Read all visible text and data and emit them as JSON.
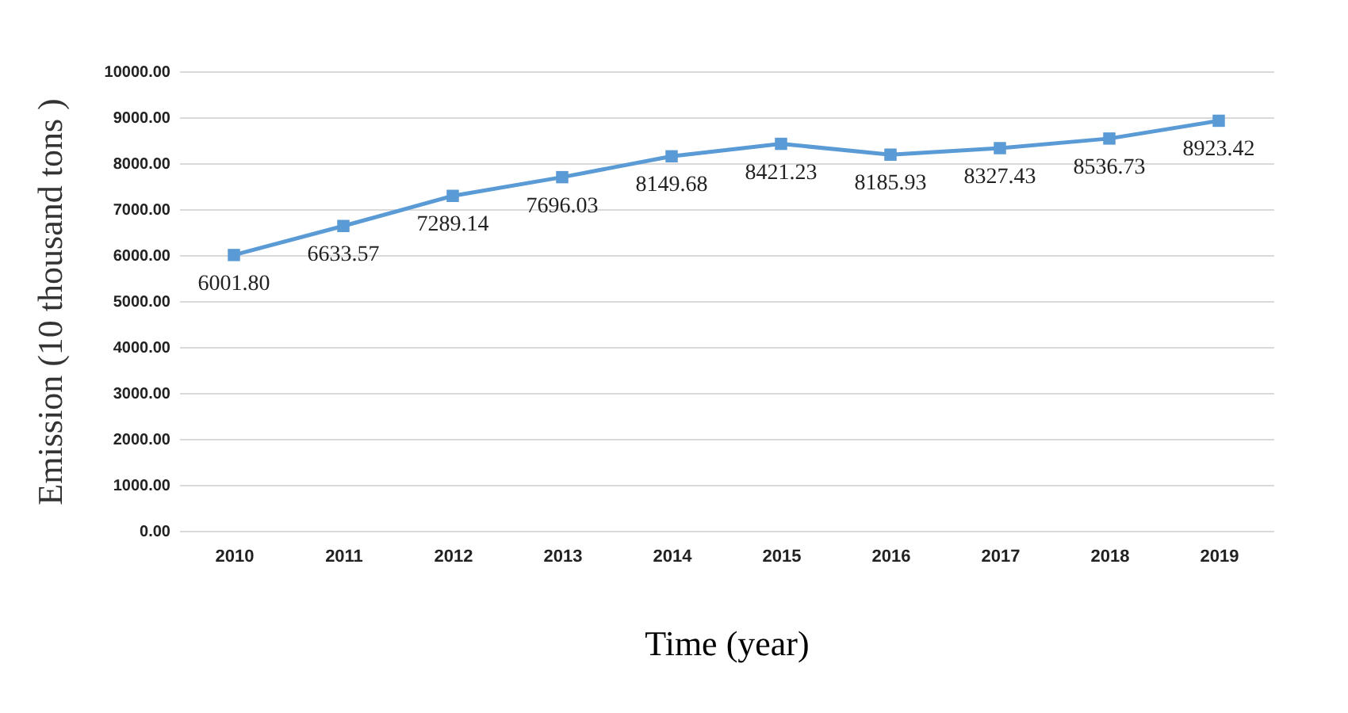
{
  "chart_data": {
    "type": "line",
    "xlabel": "Time (year)",
    "ylabel": "Emission (10 thousand tons )",
    "categories": [
      "2010",
      "2011",
      "2012",
      "2013",
      "2014",
      "2015",
      "2016",
      "2017",
      "2018",
      "2019"
    ],
    "series": [
      {
        "color": "#5b9bd5",
        "values": [
          6001.8,
          6633.57,
          7289.14,
          7696.03,
          8149.68,
          8421.23,
          8185.93,
          8327.43,
          8536.73,
          8923.42
        ],
        "value_labels": [
          "6001.80",
          "6633.57",
          "7289.14",
          "7696.03",
          "8149.68",
          "8421.23",
          "8185.93",
          "8327.43",
          "8536.73",
          "8923.42"
        ]
      }
    ],
    "ylim": [
      0,
      10000
    ],
    "yticks": [
      {
        "value": 0,
        "label": "0.00"
      },
      {
        "value": 1000,
        "label": "1000.00"
      },
      {
        "value": 2000,
        "label": "2000.00"
      },
      {
        "value": 3000,
        "label": "3000.00"
      },
      {
        "value": 4000,
        "label": "4000.00"
      },
      {
        "value": 5000,
        "label": "5000.00"
      },
      {
        "value": 6000,
        "label": "6000.00"
      },
      {
        "value": 7000,
        "label": "7000.00"
      },
      {
        "value": 8000,
        "label": "8000.00"
      },
      {
        "value": 9000,
        "label": "9000.00"
      },
      {
        "value": 10000,
        "label": "10000.00"
      }
    ],
    "grid": "y",
    "marker": "square",
    "line_style": "solid"
  }
}
